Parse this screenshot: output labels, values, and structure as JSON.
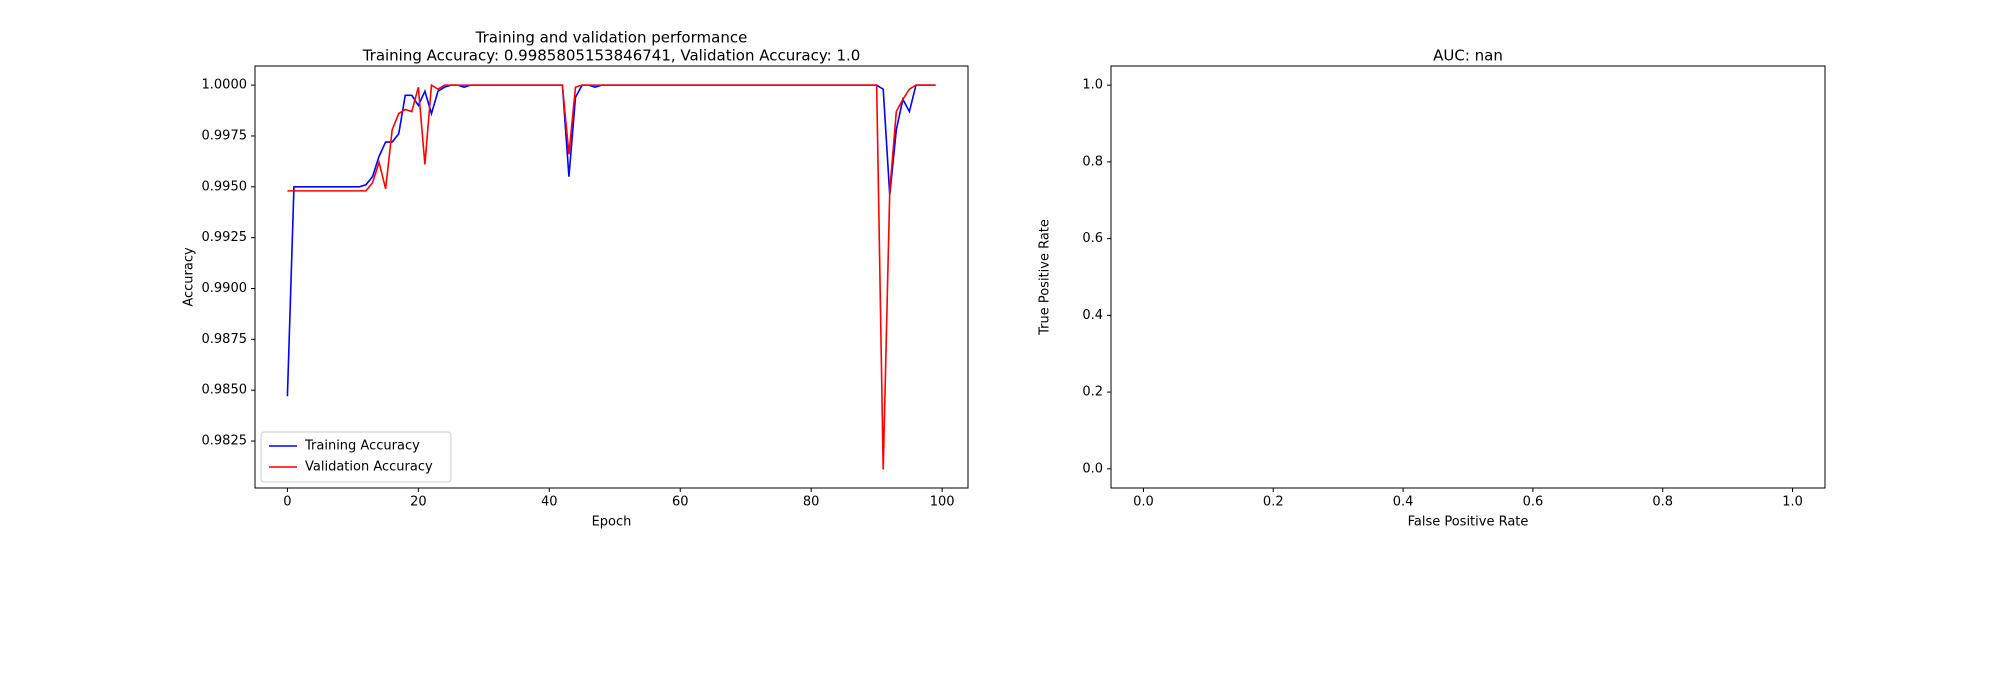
{
  "chart_data": [
    {
      "type": "line",
      "title": [
        "Training and validation performance",
        "Training Accuracy: 0.9985805153846741, Validation Accuracy: 1.0"
      ],
      "xlabel": "Epoch",
      "ylabel": "Accuracy",
      "x": [
        0,
        1,
        2,
        3,
        4,
        5,
        6,
        7,
        8,
        9,
        10,
        11,
        12,
        13,
        14,
        15,
        16,
        17,
        18,
        19,
        20,
        21,
        22,
        23,
        24,
        25,
        26,
        27,
        28,
        29,
        30,
        31,
        32,
        33,
        34,
        35,
        36,
        37,
        38,
        39,
        40,
        41,
        42,
        43,
        44,
        45,
        46,
        47,
        48,
        49,
        50,
        51,
        52,
        53,
        54,
        55,
        56,
        57,
        58,
        59,
        60,
        61,
        62,
        63,
        64,
        65,
        66,
        67,
        68,
        69,
        70,
        71,
        72,
        73,
        74,
        75,
        76,
        77,
        78,
        79,
        80,
        81,
        82,
        83,
        84,
        85,
        86,
        87,
        88,
        89,
        90,
        91,
        92,
        93,
        94,
        95,
        96,
        97,
        98,
        99
      ],
      "series": [
        {
          "name": "Training Accuracy",
          "color": "#0000ff",
          "values": [
            0.9847,
            0.995,
            0.995,
            0.995,
            0.995,
            0.995,
            0.995,
            0.995,
            0.995,
            0.995,
            0.995,
            0.995,
            0.9951,
            0.9955,
            0.9965,
            0.9972,
            0.9972,
            0.9976,
            0.9995,
            0.9995,
            0.999,
            0.9997,
            0.9986,
            0.9997,
            0.9999,
            1.0,
            1.0,
            0.9999,
            1.0,
            1.0,
            1.0,
            1.0,
            1.0,
            1.0,
            1.0,
            1.0,
            1.0,
            1.0,
            1.0,
            1.0,
            1.0,
            1.0,
            1.0,
            0.9955,
            0.9994,
            1.0,
            1.0,
            0.9999,
            1.0,
            1.0,
            1.0,
            1.0,
            1.0,
            1.0,
            1.0,
            1.0,
            1.0,
            1.0,
            1.0,
            1.0,
            1.0,
            1.0,
            1.0,
            1.0,
            1.0,
            1.0,
            1.0,
            1.0,
            1.0,
            1.0,
            1.0,
            1.0,
            1.0,
            1.0,
            1.0,
            1.0,
            1.0,
            1.0,
            1.0,
            1.0,
            1.0,
            1.0,
            1.0,
            1.0,
            1.0,
            1.0,
            1.0,
            1.0,
            1.0,
            1.0,
            1.0,
            0.9998,
            0.9946,
            0.9978,
            0.9993,
            0.9987,
            1.0,
            1.0,
            1.0,
            1.0
          ]
        },
        {
          "name": "Validation Accuracy",
          "color": "#ff0000",
          "values": [
            0.9948,
            0.9948,
            0.9948,
            0.9948,
            0.9948,
            0.9948,
            0.9948,
            0.9948,
            0.9948,
            0.9948,
            0.9948,
            0.9948,
            0.9948,
            0.9952,
            0.9962,
            0.9949,
            0.9978,
            0.9986,
            0.9988,
            0.9987,
            0.9999,
            0.9961,
            1.0,
            0.9998,
            1.0,
            1.0,
            1.0,
            1.0,
            1.0,
            1.0,
            1.0,
            1.0,
            1.0,
            1.0,
            1.0,
            1.0,
            1.0,
            1.0,
            1.0,
            1.0,
            1.0,
            1.0,
            1.0,
            0.9966,
            0.9999,
            1.0,
            1.0,
            1.0,
            1.0,
            1.0,
            1.0,
            1.0,
            1.0,
            1.0,
            1.0,
            1.0,
            1.0,
            1.0,
            1.0,
            1.0,
            1.0,
            1.0,
            1.0,
            1.0,
            1.0,
            1.0,
            1.0,
            1.0,
            1.0,
            1.0,
            1.0,
            1.0,
            1.0,
            1.0,
            1.0,
            1.0,
            1.0,
            1.0,
            1.0,
            1.0,
            1.0,
            1.0,
            1.0,
            1.0,
            1.0,
            1.0,
            1.0,
            1.0,
            1.0,
            1.0,
            1.0,
            0.9811,
            0.9948,
            0.9987,
            0.9993,
            0.9998,
            1.0,
            1.0,
            1.0,
            1.0
          ]
        }
      ],
      "xlim": [
        -4.95,
        103.95
      ],
      "ylim": [
        0.98019,
        1.00094
      ],
      "xticks": [
        0,
        20,
        40,
        60,
        80,
        100
      ],
      "yticks": [
        0.9825,
        {
          "value": 0.985,
          "label": "0.9850"
        },
        0.9875,
        {
          "value": 0.99,
          "label": "0.9900"
        },
        0.9925,
        {
          "value": 0.995,
          "label": "0.9950"
        },
        0.9975,
        {
          "value": 1.0,
          "label": "1.0000"
        }
      ],
      "legend": "lower left"
    },
    {
      "type": "line",
      "title": [
        "AUC: nan"
      ],
      "xlabel": "False Positive Rate",
      "ylabel": "True Positive Rate",
      "series": [],
      "xlim": [
        -0.05,
        1.05
      ],
      "ylim": [
        -0.05,
        1.05
      ],
      "xticks": [
        {
          "value": 0,
          "label": "0.0"
        },
        {
          "value": 0.2,
          "label": "0.2"
        },
        {
          "value": 0.4,
          "label": "0.4"
        },
        {
          "value": 0.6,
          "label": "0.6"
        },
        {
          "value": 0.8,
          "label": "0.8"
        },
        {
          "value": 1,
          "label": "1.0"
        }
      ],
      "yticks": [
        {
          "value": 0,
          "label": "0.0"
        },
        {
          "value": 0.2,
          "label": "0.2"
        },
        {
          "value": 0.4,
          "label": "0.4"
        },
        {
          "value": 0.6,
          "label": "0.6"
        },
        {
          "value": 0.8,
          "label": "0.8"
        },
        {
          "value": 1,
          "label": "1.0"
        }
      ]
    }
  ]
}
